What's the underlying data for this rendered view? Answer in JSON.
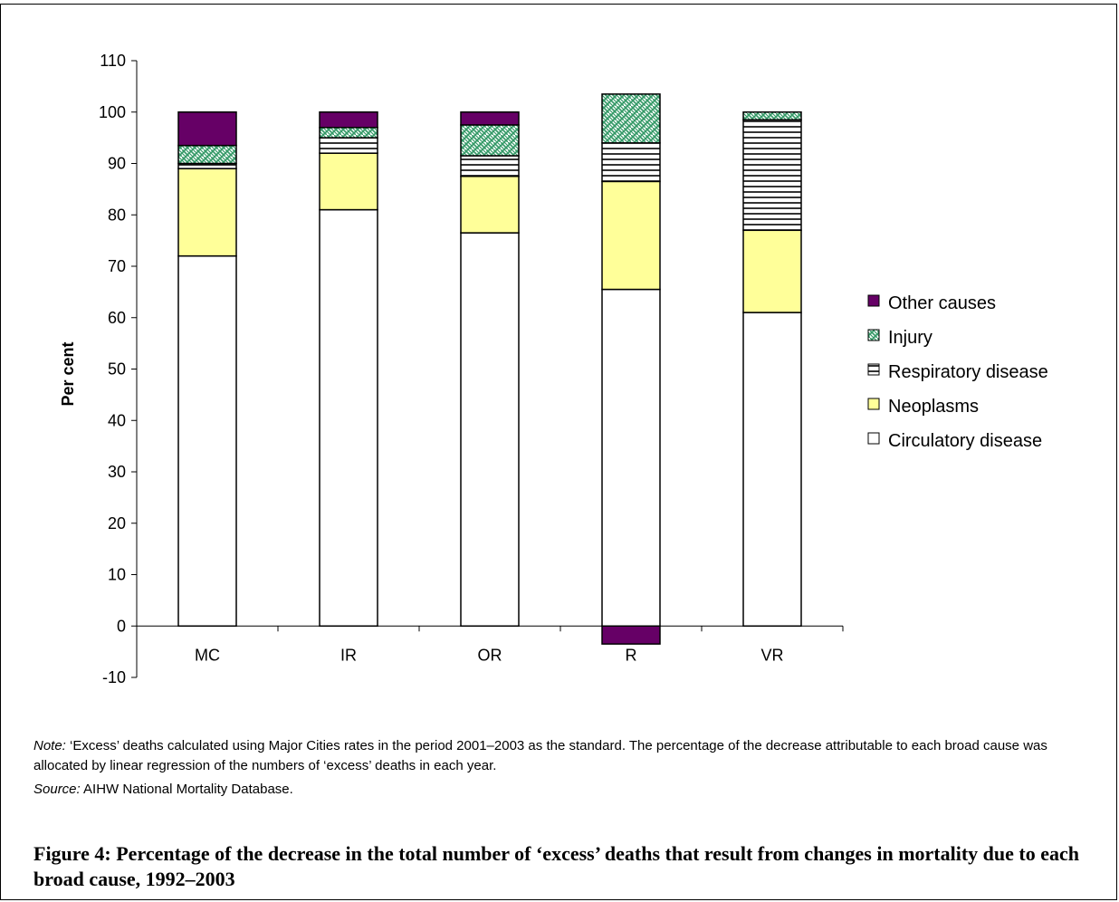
{
  "chart_data": {
    "type": "bar",
    "stacked": true,
    "categories": [
      "MC",
      "IR",
      "OR",
      "R",
      "VR"
    ],
    "series": [
      {
        "name": "Circulatory disease",
        "values": [
          72,
          81,
          76.5,
          65.5,
          61
        ],
        "color": "#ffffff",
        "pattern": "none"
      },
      {
        "name": "Neoplasms",
        "values": [
          17,
          11,
          11,
          21,
          16
        ],
        "color": "#ffff99",
        "pattern": "none"
      },
      {
        "name": "Respiratory disease",
        "values": [
          1,
          3,
          4,
          7.5,
          21.5
        ],
        "color": "#ffffff",
        "pattern": "horizontal-lines"
      },
      {
        "name": "Injury",
        "values": [
          3.5,
          2,
          6,
          9.5,
          1.5
        ],
        "color": "#339966",
        "pattern": "weave"
      },
      {
        "name": "Other causes",
        "values": [
          6.5,
          3,
          2.5,
          -3.5,
          0
        ],
        "color": "#660066",
        "pattern": "none"
      }
    ],
    "ylabel": "Per cent",
    "xlabel": "",
    "ylim": [
      -10,
      110
    ],
    "yticks": [
      -10,
      0,
      10,
      20,
      30,
      40,
      50,
      60,
      70,
      80,
      90,
      100,
      110
    ],
    "grid": false,
    "legend_position": "right",
    "legend_order": [
      "Other causes",
      "Injury",
      "Respiratory disease",
      "Neoplasms",
      "Circulatory disease"
    ]
  },
  "notes": {
    "note_label": "Note:",
    "note_text": " ‘Excess’ deaths calculated using Major Cities rates in the period 2001–2003 as the standard. The percentage of the decrease attributable to each broad cause was allocated by linear regression of the numbers of ‘excess’ deaths in each year.",
    "source_label": "Source:",
    "source_text": " AIHW National Mortality Database."
  },
  "caption": "Figure 4: Percentage of the decrease in the total number of ‘excess’ deaths that result from changes in mortality due to each broad cause, 1992–2003"
}
